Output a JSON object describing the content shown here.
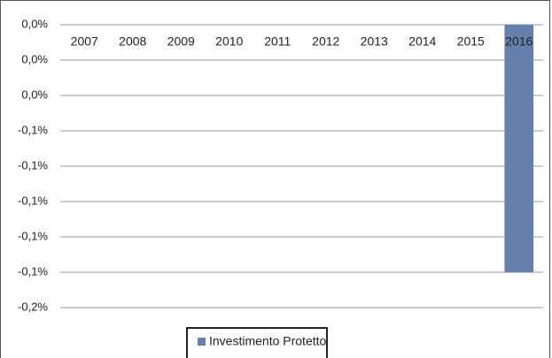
{
  "chart_data": {
    "type": "bar",
    "categories": [
      "2007",
      "2008",
      "2009",
      "2010",
      "2011",
      "2012",
      "2013",
      "2014",
      "2015",
      "2016"
    ],
    "series": [
      {
        "name": "Investimento Protetto",
        "color": "#6580ab",
        "values": [
          0,
          0,
          0,
          0,
          0,
          0,
          0,
          0,
          0,
          -0.14
        ]
      }
    ],
    "ylim": [
      -0.16,
      0
    ],
    "yticks": [
      {
        "value": 0,
        "label": "0,0%"
      },
      {
        "value": -0.02,
        "label": "0,0%"
      },
      {
        "value": -0.04,
        "label": "0,0%"
      },
      {
        "value": -0.06,
        "label": "-0,1%"
      },
      {
        "value": -0.08,
        "label": "-0,1%"
      },
      {
        "value": -0.1,
        "label": "-0,1%"
      },
      {
        "value": -0.12,
        "label": "-0,1%"
      },
      {
        "value": -0.14,
        "label": "-0,1%"
      },
      {
        "value": -0.16,
        "label": "-0,2%"
      }
    ],
    "grid": true,
    "legend": "bottom"
  }
}
